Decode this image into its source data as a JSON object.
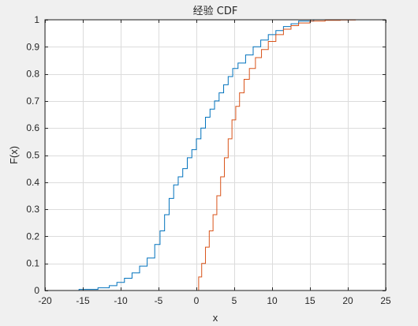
{
  "chart_data": {
    "type": "line",
    "title": "经验 CDF",
    "xlabel": "x",
    "ylabel": "F(x)",
    "xlim": [
      -20,
      25
    ],
    "ylim": [
      0,
      1
    ],
    "xticks": [
      -20,
      -15,
      -10,
      -5,
      0,
      5,
      10,
      15,
      20,
      25
    ],
    "yticks": [
      0,
      0.1,
      0.2,
      0.3,
      0.4,
      0.5,
      0.6,
      0.7,
      0.8,
      0.9,
      1
    ],
    "grid": true,
    "series": [
      {
        "color": "#0072bd",
        "x": [
          -17.8,
          -15.5,
          -13.0,
          -11.5,
          -10.5,
          -9.5,
          -8.5,
          -7.5,
          -6.5,
          -5.5,
          -4.8,
          -4.2,
          -3.6,
          -3.0,
          -2.4,
          -1.8,
          -1.2,
          -0.6,
          0.0,
          0.6,
          1.2,
          1.8,
          2.4,
          3.0,
          3.6,
          4.2,
          4.8,
          5.5,
          6.5,
          7.5,
          8.5,
          9.5,
          10.5,
          11.5,
          12.5,
          13.5,
          15.5
        ],
        "y": [
          0.0,
          0.004,
          0.01,
          0.018,
          0.03,
          0.045,
          0.065,
          0.09,
          0.12,
          0.17,
          0.22,
          0.28,
          0.34,
          0.39,
          0.42,
          0.45,
          0.49,
          0.52,
          0.56,
          0.6,
          0.64,
          0.67,
          0.7,
          0.73,
          0.76,
          0.79,
          0.82,
          0.84,
          0.87,
          0.9,
          0.925,
          0.945,
          0.96,
          0.975,
          0.985,
          0.995,
          1.0
        ]
      },
      {
        "color": "#d95319",
        "x": [
          0.0,
          0.3,
          0.7,
          1.2,
          1.7,
          2.2,
          2.7,
          3.2,
          3.7,
          4.2,
          4.7,
          5.2,
          5.7,
          6.3,
          7.0,
          7.8,
          8.6,
          9.5,
          10.5,
          11.5,
          12.5,
          13.5,
          15.0,
          17.0,
          19.0,
          21.0
        ],
        "y": [
          0.0,
          0.05,
          0.1,
          0.16,
          0.22,
          0.28,
          0.35,
          0.42,
          0.49,
          0.56,
          0.63,
          0.68,
          0.73,
          0.78,
          0.82,
          0.86,
          0.89,
          0.92,
          0.945,
          0.965,
          0.978,
          0.988,
          0.995,
          0.998,
          0.999,
          1.0
        ]
      }
    ]
  }
}
